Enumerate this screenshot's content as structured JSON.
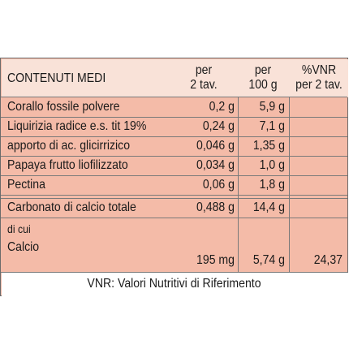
{
  "header": {
    "col1": "CONTENUTI MEDI",
    "col2_line1": "per",
    "col2_line2": "2 tav.",
    "col3_line1": "per",
    "col3_line2": "100 g",
    "col4_line1": "%VNR",
    "col4_line2": "per 2 tav."
  },
  "rows": [
    {
      "name": "Corallo fossile polvere",
      "per2": "0,2 g",
      "per100": "5,9 g",
      "vnr": ""
    },
    {
      "name": "Liquirizia radice e.s. tit 19%",
      "per2": "0,24 g",
      "per100": "7,1 g",
      "vnr": ""
    },
    {
      "name": "apporto di ac. glicirrizico",
      "per2": "0,046 g",
      "per100": "1,35 g",
      "vnr": ""
    },
    {
      "name": "Papaya frutto liofilizzato",
      "per2": "0,034 g",
      "per100": "1,0 g",
      "vnr": ""
    },
    {
      "name": "Pectina",
      "per2": "0,06 g",
      "per100": "1,8 g",
      "vnr": ""
    }
  ],
  "carbonato": {
    "name": "Carbonato di calcio totale",
    "per2": "0,488 g",
    "per100": "14,4 g",
    "vnr": ""
  },
  "calcio": {
    "prefix": "di cui",
    "name": "Calcio",
    "per2": "195 mg",
    "per100": "5,74 g",
    "vnr": "24,37"
  },
  "footer": "VNR: Valori Nutritivi di Riferimento"
}
